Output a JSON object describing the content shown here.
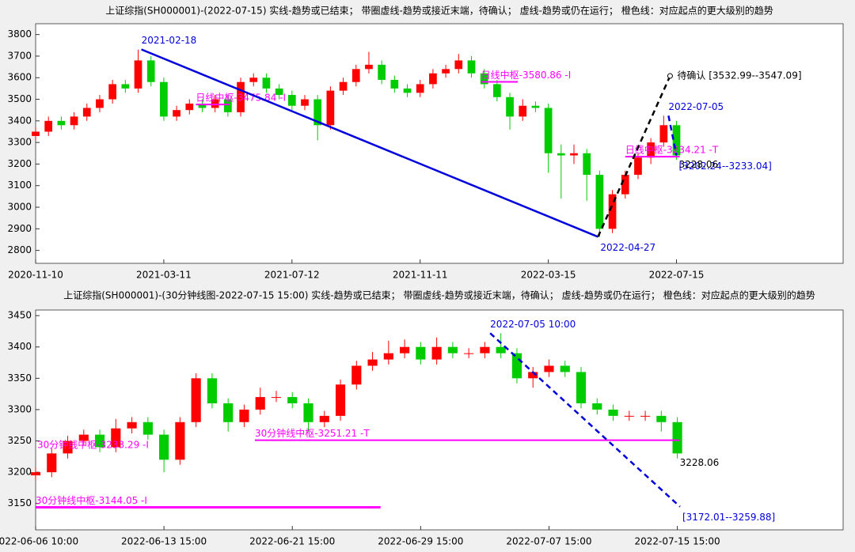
{
  "chart_data": [
    {
      "type": "candlestick",
      "title": "上证综指(SH000001)-(2022-07-15)  实线-趋势或已结束；  带圈虚线-趋势或接近末端，待确认；  虚线-趋势或仍在运行；  橙色线：对应起点的更大级别的趋势",
      "up_color": "#ff0000",
      "down_color": "#00cc00",
      "xlim": [
        0,
        504
      ],
      "ylim": [
        2740,
        3850
      ],
      "xticks": [
        {
          "value": 0,
          "label": "2020-11-10"
        },
        {
          "value": 80,
          "label": "2021-03-11"
        },
        {
          "value": 160,
          "label": "2021-07-12"
        },
        {
          "value": 240,
          "label": "2021-11-11"
        },
        {
          "value": 320,
          "label": "2022-03-15"
        },
        {
          "value": 400,
          "label": "2022-07-15"
        }
      ],
      "yticks": [
        2800,
        2900,
        3000,
        3100,
        3200,
        3300,
        3400,
        3500,
        3600,
        3700,
        3800
      ],
      "x": [
        0,
        8,
        16,
        24,
        32,
        40,
        48,
        56,
        64,
        72,
        80,
        88,
        96,
        104,
        112,
        120,
        128,
        136,
        144,
        152,
        160,
        168,
        176,
        184,
        192,
        200,
        208,
        216,
        224,
        232,
        240,
        248,
        256,
        264,
        272,
        280,
        288,
        296,
        304,
        312,
        320,
        328,
        336,
        344,
        352,
        360,
        368,
        376,
        384,
        392,
        400
      ],
      "open": [
        3330,
        3350,
        3400,
        3380,
        3420,
        3460,
        3500,
        3570,
        3550,
        3680,
        3580,
        3420,
        3450,
        3480,
        3460,
        3500,
        3440,
        3580,
        3600,
        3550,
        3520,
        3470,
        3500,
        3380,
        3540,
        3580,
        3640,
        3660,
        3590,
        3550,
        3530,
        3570,
        3620,
        3640,
        3680,
        3620,
        3570,
        3510,
        3420,
        3470,
        3460,
        3250,
        3240,
        3250,
        3150,
        2900,
        3060,
        3150,
        3230,
        3300,
        3380
      ],
      "high": [
        3370,
        3420,
        3420,
        3440,
        3480,
        3520,
        3590,
        3590,
        3730,
        3700,
        3600,
        3470,
        3500,
        3500,
        3520,
        3520,
        3600,
        3620,
        3620,
        3570,
        3540,
        3520,
        3520,
        3560,
        3600,
        3660,
        3720,
        3680,
        3610,
        3570,
        3590,
        3640,
        3660,
        3710,
        3700,
        3640,
        3590,
        3530,
        3500,
        3490,
        3480,
        3290,
        3290,
        3270,
        3170,
        3080,
        3170,
        3250,
        3320,
        3424,
        3400
      ],
      "low": [
        3310,
        3330,
        3360,
        3360,
        3400,
        3440,
        3480,
        3530,
        3530,
        3560,
        3400,
        3400,
        3430,
        3440,
        3440,
        3420,
        3420,
        3560,
        3530,
        3500,
        3450,
        3450,
        3310,
        3360,
        3520,
        3560,
        3620,
        3570,
        3530,
        3510,
        3510,
        3550,
        3600,
        3620,
        3600,
        3550,
        3490,
        3360,
        3400,
        3440,
        3160,
        3040,
        3200,
        3030,
        2863,
        2880,
        3040,
        3130,
        3200,
        3280,
        3220
      ],
      "close": [
        3350,
        3400,
        3380,
        3420,
        3460,
        3500,
        3570,
        3550,
        3680,
        3580,
        3420,
        3450,
        3480,
        3460,
        3500,
        3440,
        3580,
        3600,
        3550,
        3520,
        3470,
        3500,
        3380,
        3540,
        3580,
        3640,
        3660,
        3590,
        3550,
        3530,
        3570,
        3620,
        3640,
        3680,
        3620,
        3570,
        3510,
        3420,
        3470,
        3460,
        3250,
        3240,
        3250,
        3150,
        2900,
        3060,
        3150,
        3230,
        3300,
        3380,
        3240
      ],
      "last_close": 3228.06,
      "lines": [
        {
          "style": "solid",
          "color": "#0000dd",
          "x": [
            66,
            351
          ],
          "y": [
            3731,
            2863
          ],
          "start_label": "2021-02-18",
          "end_label": "2022-04-27"
        },
        {
          "style": "dashed",
          "color": "#000000",
          "x": [
            351,
            396
          ],
          "y": [
            2863,
            3608
          ],
          "end_marker": "circle",
          "end_label": "待确认 [3532.99--3547.09]"
        },
        {
          "style": "dashed",
          "color": "#0000dd",
          "x": [
            395,
            400
          ],
          "y": [
            3424,
            3240
          ],
          "start_label": "2022-07-05",
          "end_label": "[3202.24--3233.04]"
        }
      ],
      "zhongshu": [
        {
          "label": "日线中枢-3475.84 -I",
          "value": 3475.84,
          "x": [
            100,
            121
          ]
        },
        {
          "label": "日线中枢-3580.86 -I",
          "value": 3580.86,
          "x": [
            278,
            301
          ]
        },
        {
          "label": "日线中枢-3234.21 -T",
          "value": 3234.21,
          "x": [
            368,
            402
          ]
        }
      ]
    },
    {
      "type": "candlestick",
      "title": "上证综指(SH000001)-(30分钟线图-2022-07-15 15:00)  实线-趋势或已结束；  带圈虚线-趋势或接近末端，待确认；  虚线-趋势或仍在运行；  橙色线：对应起点的更大级别的趋势",
      "up_color": "#ff0000",
      "down_color": "#00cc00",
      "xlim": [
        0,
        302
      ],
      "ylim": [
        3108,
        3459
      ],
      "xticks": [
        {
          "value": 0,
          "label": "2022-06-06 10:00"
        },
        {
          "value": 48,
          "label": "2022-06-13 15:00"
        },
        {
          "value": 96,
          "label": "2022-06-21 15:00"
        },
        {
          "value": 144,
          "label": "2022-06-29 15:00"
        },
        {
          "value": 192,
          "label": "2022-07-07 15:00"
        },
        {
          "value": 240,
          "label": "2022-07-15 15:00"
        }
      ],
      "yticks": [
        3150,
        3200,
        3250,
        3300,
        3350,
        3400,
        3450
      ],
      "x": [
        0,
        6,
        12,
        18,
        24,
        30,
        36,
        42,
        48,
        54,
        60,
        66,
        72,
        78,
        84,
        90,
        96,
        102,
        108,
        114,
        120,
        126,
        132,
        138,
        144,
        150,
        156,
        162,
        168,
        174,
        180,
        186,
        192,
        198,
        204,
        210,
        216,
        222,
        228,
        234,
        240
      ],
      "open": [
        3195,
        3200,
        3230,
        3250,
        3260,
        3240,
        3270,
        3280,
        3260,
        3220,
        3280,
        3350,
        3310,
        3280,
        3300,
        3320,
        3320,
        3310,
        3280,
        3290,
        3340,
        3370,
        3380,
        3390,
        3400,
        3380,
        3400,
        3390,
        3390,
        3400,
        3390,
        3350,
        3360,
        3370,
        3360,
        3310,
        3300,
        3290,
        3290,
        3290,
        3280
      ],
      "high": [
        3208,
        3238,
        3258,
        3268,
        3268,
        3285,
        3288,
        3288,
        3268,
        3288,
        3358,
        3358,
        3318,
        3308,
        3335,
        3330,
        3328,
        3318,
        3298,
        3348,
        3378,
        3392,
        3410,
        3412,
        3408,
        3415,
        3408,
        3398,
        3408,
        3422,
        3398,
        3368,
        3380,
        3378,
        3368,
        3318,
        3308,
        3298,
        3298,
        3298,
        3288
      ],
      "low": [
        3187,
        3192,
        3222,
        3242,
        3232,
        3232,
        3262,
        3252,
        3200,
        3212,
        3272,
        3302,
        3265,
        3272,
        3292,
        3312,
        3302,
        3265,
        3272,
        3282,
        3332,
        3362,
        3372,
        3382,
        3372,
        3372,
        3382,
        3382,
        3382,
        3382,
        3342,
        3335,
        3352,
        3352,
        3302,
        3292,
        3282,
        3282,
        3282,
        3265,
        3222
      ],
      "close": [
        3200,
        3230,
        3250,
        3260,
        3240,
        3270,
        3280,
        3260,
        3220,
        3280,
        3350,
        3310,
        3280,
        3300,
        3320,
        3320,
        3310,
        3280,
        3290,
        3340,
        3370,
        3380,
        3390,
        3400,
        3380,
        3400,
        3390,
        3390,
        3400,
        3390,
        3350,
        3360,
        3370,
        3360,
        3310,
        3300,
        3290,
        3290,
        3290,
        3280,
        3230
      ],
      "last_close": 3228.06,
      "lines": [
        {
          "style": "dashed",
          "color": "#0000dd",
          "x": [
            170,
            241
          ],
          "y": [
            3422,
            3145
          ],
          "start_label": "2022-07-05 10:00",
          "end_label": "[3172.01--3259.88]"
        }
      ],
      "zhongshu": [
        {
          "label": "30分钟线中枢-3233.29 -I",
          "value": 3233.29
        },
        {
          "label": "30分钟线中枢-3251.21 -T",
          "value": 3251.21,
          "x": [
            82,
            241
          ]
        },
        {
          "label": "30分钟线中枢-3144.05 -I",
          "value": 3144.05,
          "x": [
            0,
            129
          ]
        }
      ]
    }
  ]
}
